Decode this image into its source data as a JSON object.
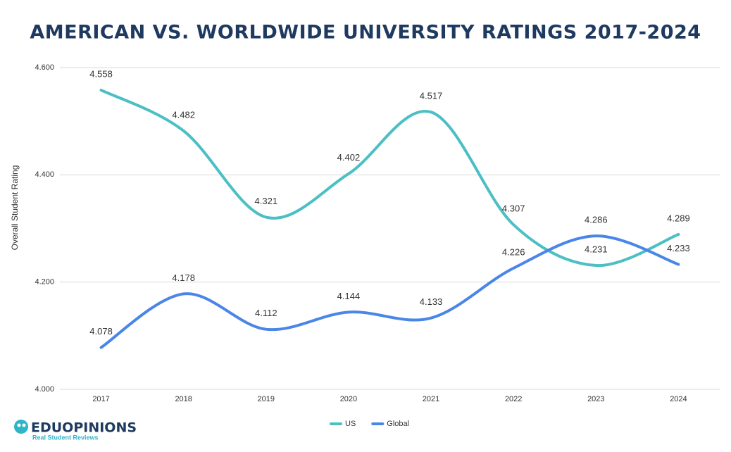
{
  "chart_data": {
    "type": "line",
    "title": "AMERICAN VS. WORLDWIDE UNIVERSITY RATINGS 2017-2024",
    "y_label": "Overall Student Rating",
    "categories": [
      "2017",
      "2018",
      "2019",
      "2020",
      "2021",
      "2022",
      "2023",
      "2024"
    ],
    "series": [
      {
        "name": "US",
        "color": "#4bbfc4",
        "values": [
          4.558,
          4.482,
          4.321,
          4.402,
          4.517,
          4.307,
          4.231,
          4.289
        ]
      },
      {
        "name": "Global",
        "color": "#4a86e8",
        "values": [
          4.078,
          4.178,
          4.112,
          4.144,
          4.133,
          4.226,
          4.286,
          4.233
        ]
      }
    ],
    "ylim": [
      4.0,
      4.6
    ],
    "yticks": [
      {
        "value": 4.0,
        "label": "4.000"
      },
      {
        "value": 4.2,
        "label": "4.200"
      },
      {
        "value": 4.4,
        "label": "4.400"
      },
      {
        "value": 4.6,
        "label": "4.600"
      }
    ],
    "grid": true,
    "legend": "bottom"
  },
  "logo": {
    "name": "EDUOPINIONS",
    "tagline": "Real Student Reviews"
  }
}
